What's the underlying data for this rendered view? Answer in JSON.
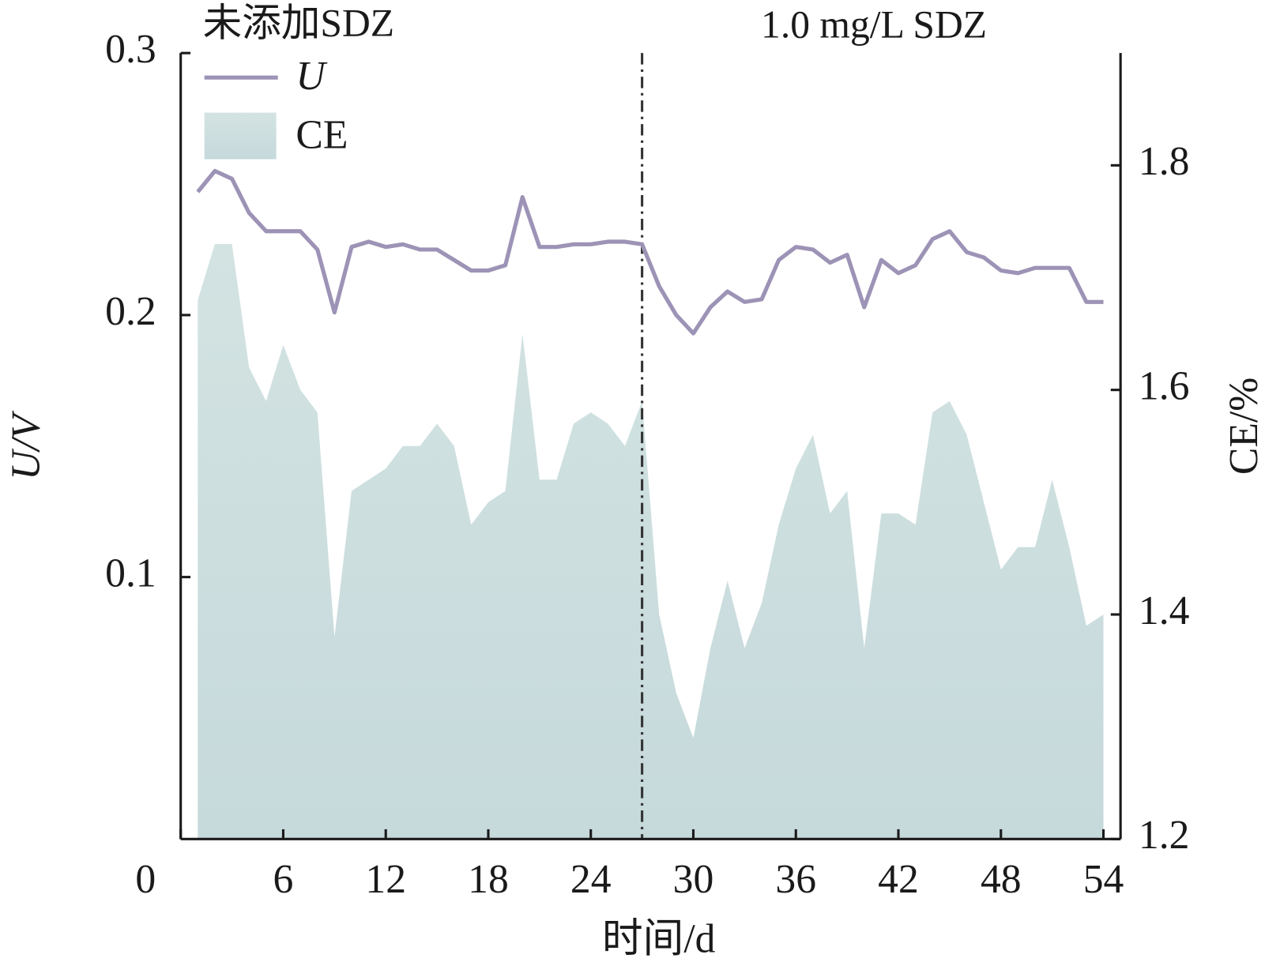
{
  "chart_data": {
    "type": "line-area",
    "x_label": "时间/d",
    "y_label": "U/V",
    "y2_label": "CE/%",
    "annotations": [
      {
        "text": "未添加SDZ"
      },
      {
        "text": "1.0 mg/L SDZ"
      }
    ],
    "divider_x": 27,
    "xlim": [
      0,
      55
    ],
    "xticks": [
      0,
      6,
      12,
      18,
      24,
      30,
      36,
      42,
      48,
      54
    ],
    "ylim": [
      0,
      0.3
    ],
    "yticks": [
      0.1,
      0.2,
      0.3
    ],
    "y2lim": [
      1.2,
      1.9
    ],
    "y2ticks": [
      1.2,
      1.4,
      1.6,
      1.8
    ],
    "x": [
      1,
      2,
      3,
      4,
      5,
      6,
      7,
      8,
      9,
      10,
      11,
      12,
      13,
      14,
      15,
      16,
      17,
      18,
      19,
      20,
      21,
      22,
      23,
      24,
      25,
      26,
      27,
      28,
      29,
      30,
      31,
      32,
      33,
      34,
      35,
      36,
      37,
      38,
      39,
      40,
      41,
      42,
      43,
      44,
      45,
      46,
      47,
      48,
      49,
      50,
      51,
      52,
      53,
      54
    ],
    "series": [
      {
        "name": "U",
        "kind": "line",
        "color": "#9d93b6",
        "values": [
          0.247,
          0.255,
          0.252,
          0.239,
          0.232,
          0.232,
          0.232,
          0.225,
          0.201,
          0.226,
          0.228,
          0.226,
          0.227,
          0.225,
          0.225,
          0.221,
          0.217,
          0.217,
          0.219,
          0.245,
          0.226,
          0.226,
          0.227,
          0.227,
          0.228,
          0.228,
          0.227,
          0.211,
          0.2,
          0.193,
          0.203,
          0.209,
          0.205,
          0.206,
          0.221,
          0.226,
          0.225,
          0.22,
          0.223,
          0.203,
          0.221,
          0.216,
          0.219,
          0.229,
          0.232,
          0.224,
          0.222,
          0.217,
          0.216,
          0.218,
          0.218,
          0.218,
          0.205,
          0.205
        ]
      },
      {
        "name": "CE",
        "kind": "area",
        "axis": "y2",
        "color": "#c9dddd",
        "values": [
          1.68,
          1.73,
          1.73,
          1.62,
          1.59,
          1.64,
          1.6,
          1.58,
          1.38,
          1.51,
          1.52,
          1.53,
          1.55,
          1.55,
          1.57,
          1.55,
          1.48,
          1.5,
          1.51,
          1.65,
          1.52,
          1.52,
          1.57,
          1.58,
          1.57,
          1.55,
          1.59,
          1.4,
          1.33,
          1.29,
          1.37,
          1.43,
          1.37,
          1.41,
          1.48,
          1.53,
          1.56,
          1.49,
          1.51,
          1.37,
          1.49,
          1.49,
          1.48,
          1.58,
          1.59,
          1.56,
          1.5,
          1.44,
          1.46,
          1.46,
          1.52,
          1.46,
          1.39,
          1.4
        ]
      }
    ]
  }
}
